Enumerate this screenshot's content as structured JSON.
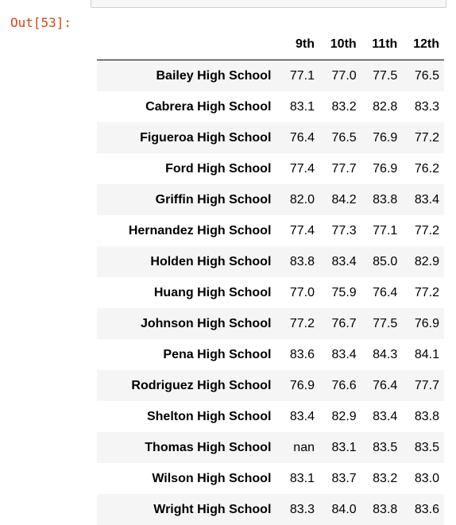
{
  "cell": {
    "prompt": "Out[53]:"
  },
  "table": {
    "columns": [
      "9th",
      "10th",
      "11th",
      "12th"
    ],
    "rows": [
      {
        "school": "Bailey High School",
        "values": [
          "77.1",
          "77.0",
          "77.5",
          "76.5"
        ]
      },
      {
        "school": "Cabrera High School",
        "values": [
          "83.1",
          "83.2",
          "82.8",
          "83.3"
        ]
      },
      {
        "school": "Figueroa High School",
        "values": [
          "76.4",
          "76.5",
          "76.9",
          "77.2"
        ]
      },
      {
        "school": "Ford High School",
        "values": [
          "77.4",
          "77.7",
          "76.9",
          "76.2"
        ]
      },
      {
        "school": "Griffin High School",
        "values": [
          "82.0",
          "84.2",
          "83.8",
          "83.4"
        ]
      },
      {
        "school": "Hernandez High School",
        "values": [
          "77.4",
          "77.3",
          "77.1",
          "77.2"
        ]
      },
      {
        "school": "Holden High School",
        "values": [
          "83.8",
          "83.4",
          "85.0",
          "82.9"
        ]
      },
      {
        "school": "Huang High School",
        "values": [
          "77.0",
          "75.9",
          "76.4",
          "77.2"
        ]
      },
      {
        "school": "Johnson High School",
        "values": [
          "77.2",
          "76.7",
          "77.5",
          "76.9"
        ]
      },
      {
        "school": "Pena High School",
        "values": [
          "83.6",
          "83.4",
          "84.3",
          "84.1"
        ]
      },
      {
        "school": "Rodriguez High School",
        "values": [
          "76.9",
          "76.6",
          "76.4",
          "77.7"
        ]
      },
      {
        "school": "Shelton High School",
        "values": [
          "83.4",
          "82.9",
          "83.4",
          "83.8"
        ]
      },
      {
        "school": "Thomas High School",
        "values": [
          "nan",
          "83.1",
          "83.5",
          "83.5"
        ]
      },
      {
        "school": "Wilson High School",
        "values": [
          "83.1",
          "83.7",
          "83.2",
          "83.0"
        ]
      },
      {
        "school": "Wright High School",
        "values": [
          "83.3",
          "84.0",
          "83.8",
          "83.6"
        ]
      }
    ]
  }
}
